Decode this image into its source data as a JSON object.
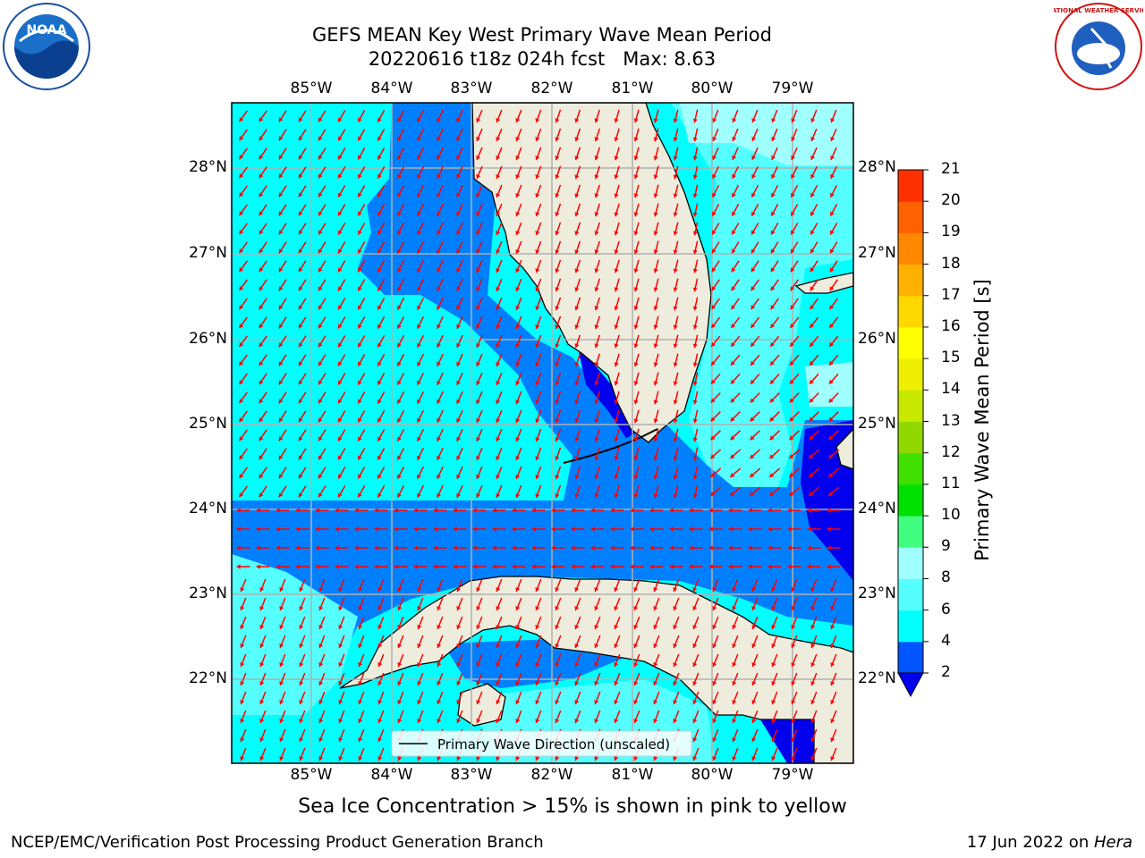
{
  "title": {
    "line1": "GEFS MEAN Key West Primary Wave Mean Period",
    "line2": "20220616 t18z 024h fcst   Max: 8.63"
  },
  "logos": {
    "left": "NOAA",
    "right": "NATIONAL WEATHER SERVICE"
  },
  "map": {
    "lon_labels": [
      "85°W",
      "84°W",
      "83°W",
      "82°W",
      "81°W",
      "80°W",
      "79°W"
    ],
    "lat_labels": [
      "28°N",
      "27°N",
      "26°N",
      "25°N",
      "24°N",
      "23°N",
      "22°N"
    ],
    "legend_text": "Primary Wave Direction (unscaled)",
    "colors": {
      "land": "#eeecdc",
      "arrow": "#ff0000",
      "grid": "#b0b0b0",
      "coast": "#000000"
    }
  },
  "colorbar": {
    "label": "Primary Wave Mean Period [s]",
    "ticks": [
      "2",
      "4",
      "6",
      "8",
      "9",
      "10",
      "11",
      "12",
      "13",
      "14",
      "15",
      "16",
      "17",
      "18",
      "19",
      "20",
      "21"
    ],
    "colors": [
      "#0055ff",
      "#00ffff",
      "#55ffff",
      "#a0ffff",
      "#40ff80",
      "#00e000",
      "#40e000",
      "#90d800",
      "#c8e800",
      "#eeee00",
      "#ffff00",
      "#ffd800",
      "#ffb000",
      "#ff8800",
      "#ff6000",
      "#ff3000",
      "#ff0000"
    ],
    "under_color": "#0000ee"
  },
  "notice": "Sea Ice Concentration > 15% is shown in pink to yellow",
  "footer": {
    "left": "NCEP/EMC/Verification Post Processing Product Generation Branch",
    "right_prefix": "17 Jun 2022 on ",
    "right_host": "Hera"
  }
}
